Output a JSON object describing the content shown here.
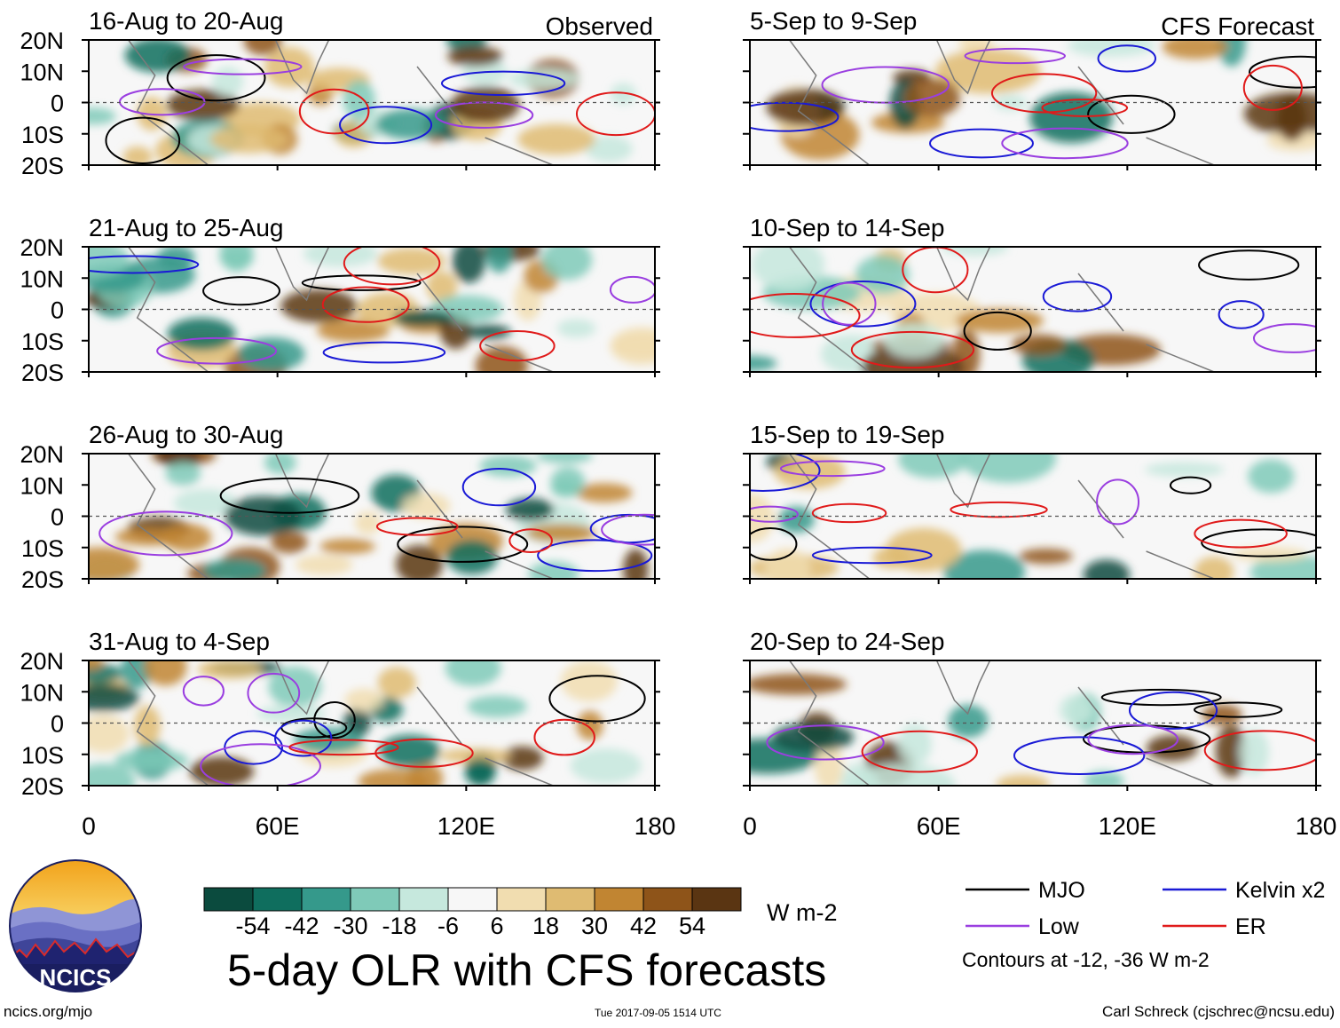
{
  "chart_data": {
    "type": "heatmap",
    "title": "5-day OLR with CFS forecasts",
    "units": "W m-2",
    "colorbar": {
      "labels": [
        "-54",
        "-42",
        "-30",
        "-18",
        "-6",
        "6",
        "18",
        "30",
        "42",
        "54"
      ],
      "colors": [
        "#0b4b3e",
        "#0f6e5e",
        "#35998b",
        "#7fcab8",
        "#c6e8dd",
        "#f7f7f7",
        "#f1ddb0",
        "#dfbb72",
        "#c18532",
        "#8e5419",
        "#5a3512"
      ]
    },
    "x_ticks": [
      "0",
      "60E",
      "120E",
      "180"
    ],
    "y_ticks": [
      "20N",
      "10N",
      "0",
      "10S",
      "20S"
    ],
    "columns": [
      {
        "label": "Observed",
        "panels": [
          {
            "period": "16-Aug to 20-Aug"
          },
          {
            "period": "21-Aug to 25-Aug"
          },
          {
            "period": "26-Aug to 30-Aug"
          },
          {
            "period": "31-Aug to 4-Sep"
          }
        ]
      },
      {
        "label": "CFS Forecast",
        "panels": [
          {
            "period": "5-Sep to 9-Sep"
          },
          {
            "period": "10-Sep to 14-Sep"
          },
          {
            "period": "15-Sep to 19-Sep"
          },
          {
            "period": "20-Sep to 24-Sep"
          }
        ]
      }
    ],
    "legend": [
      {
        "name": "MJO",
        "color": "#000000"
      },
      {
        "name": "Kelvin x2",
        "color": "#1a1ad6"
      },
      {
        "name": "Low",
        "color": "#9a3ee0"
      },
      {
        "name": "ER",
        "color": "#e01a1a"
      }
    ],
    "contour_note": "Contours at -12, -36 W m-2"
  },
  "branding": {
    "logo_text": "NCICS",
    "url": "ncics.org/mjo",
    "timestamp": "Tue 2017-09-05 1514 UTC",
    "author": "Carl Schreck (cjschrec@ncsu.edu)"
  }
}
